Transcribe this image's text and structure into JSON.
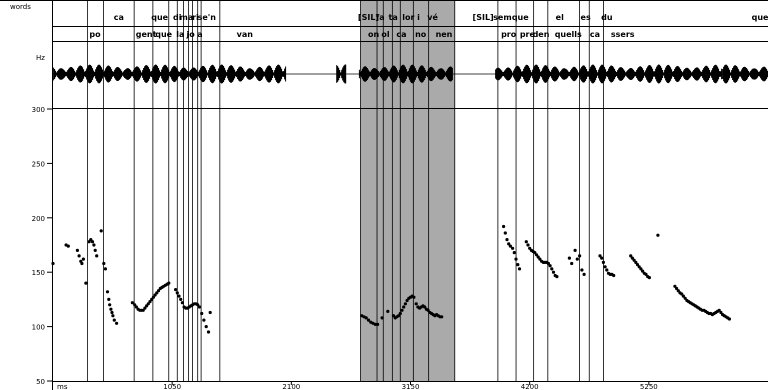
{
  "tiers": {
    "words_label": "words",
    "hz_label": "Hz",
    "row1": [
      {
        "t": 580,
        "text": "ca"
      },
      {
        "t": 940,
        "text": "que"
      },
      {
        "t": 1095,
        "text": "di"
      },
      {
        "t": 1175,
        "text": "ma"
      },
      {
        "t": 1255,
        "text": "ri"
      },
      {
        "t": 1355,
        "text": "se'n"
      },
      {
        "t": 2780,
        "text": "[SIL]"
      },
      {
        "t": 2883,
        "text": "fa"
      },
      {
        "t": 2997,
        "text": "ta"
      },
      {
        "t": 3155,
        "text": "lor i"
      },
      {
        "t": 3345,
        "text": "vé"
      },
      {
        "t": 3790,
        "text": "[SIL]"
      },
      {
        "t": 3960,
        "text": "sem"
      },
      {
        "t": 4117,
        "text": "que"
      },
      {
        "t": 4465,
        "text": "el"
      },
      {
        "t": 4693,
        "text": "es"
      },
      {
        "t": 4880,
        "text": "du"
      },
      {
        "t": 6230,
        "text": "que"
      }
    ],
    "row2": [
      {
        "t": 370,
        "text": "po"
      },
      {
        "t": 820,
        "text": "gent"
      },
      {
        "t": 975,
        "text": "que"
      },
      {
        "t": 1122,
        "text": "la"
      },
      {
        "t": 1213,
        "text": "jo"
      },
      {
        "t": 1295,
        "text": "a"
      },
      {
        "t": 1690,
        "text": "van"
      },
      {
        "t": 2825,
        "text": "on"
      },
      {
        "t": 2930,
        "text": "ol"
      },
      {
        "t": 3070,
        "text": "ca"
      },
      {
        "t": 3240,
        "text": "no"
      },
      {
        "t": 3445,
        "text": "nen"
      },
      {
        "t": 4015,
        "text": "pro"
      },
      {
        "t": 4180,
        "text": "pre"
      },
      {
        "t": 4300,
        "text": "den"
      },
      {
        "t": 4540,
        "text": "quells"
      },
      {
        "t": 4775,
        "text": "ca"
      },
      {
        "t": 5020,
        "text": "ssers"
      }
    ]
  },
  "boundaries_ms": [
    305,
    445,
    715,
    880,
    1020,
    1095,
    1150,
    1195,
    1230,
    1275,
    1305,
    1470,
    2710,
    2855,
    2910,
    2990,
    3060,
    3175,
    3310,
    3540,
    3920,
    4080,
    4235,
    4360,
    4640,
    4725,
    4850
  ],
  "selection": {
    "start_ms": 2710,
    "end_ms": 3540
  },
  "axis": {
    "unit": "ms",
    "ticks": [
      {
        "t": 1050,
        "text": "1050"
      },
      {
        "t": 2100,
        "text": "2100"
      },
      {
        "t": 3150,
        "text": "3150"
      },
      {
        "t": 4200,
        "text": "4200"
      },
      {
        "t": 5250,
        "text": "5250"
      }
    ]
  },
  "pitch_axis": {
    "range": [
      50,
      300
    ],
    "ticks": [
      {
        "v": 300,
        "text": "300"
      },
      {
        "v": 250,
        "text": "250"
      },
      {
        "v": 200,
        "text": "200"
      },
      {
        "v": 150,
        "text": "150"
      },
      {
        "v": 100,
        "text": "100"
      },
      {
        "v": 50,
        "text": "50"
      }
    ]
  },
  "view": {
    "start_ms": 0,
    "end_ms": 6300
  },
  "chart_data": {
    "type": "scatter",
    "xlabel": "ms",
    "ylabel": "Hz",
    "xlim": [
      0,
      6300
    ],
    "ylim": [
      50,
      300
    ],
    "x": [
      0,
      120,
      145,
      220,
      240,
      260,
      275,
      290,
      320,
      335,
      350,
      365,
      380,
      395,
      430,
      455,
      470,
      490,
      505,
      520,
      560,
      600,
      640,
      680,
      720,
      760,
      800,
      840,
      880,
      920,
      960,
      1000,
      1040,
      1080,
      1120,
      1160,
      1200,
      1240,
      1270,
      1300,
      1340,
      1380,
      1420,
      1460,
      1500,
      1540,
      1580,
      1620,
      1660,
      2710,
      2740,
      2770,
      2800,
      2830,
      2860,
      2890,
      2950,
      2990,
      3020,
      3040,
      3070,
      3100,
      3130,
      3160,
      3190,
      3220,
      3250,
      3280,
      3310,
      3340,
      3370,
      3400,
      3430,
      3460,
      3490,
      3520,
      3550,
      3580,
      3610,
      3640,
      3670,
      3700,
      3730,
      3760,
      3790,
      3820,
      3850,
      3880,
      3910,
      3940,
      3970,
      4000,
      4030,
      4060,
      4090,
      4120,
      4150,
      4180,
      4210,
      4240,
      4270,
      4300,
      4330,
      4360,
      4390,
      4420,
      4450,
      4480,
      4510,
      4540,
      4570,
      4600,
      4630,
      4660,
      4690,
      4720,
      4750,
      4780,
      4810,
      4840,
      4870,
      4900,
      4930,
      4960,
      4990,
      5020,
      5050,
      5080,
      5110,
      5140,
      5170,
      5200,
      5230,
      5260,
      5290,
      5320,
      5350,
      5380,
      5410,
      5440,
      5470,
      5500,
      5530,
      5560,
      5590,
      5620,
      5650,
      5680,
      5710,
      5740,
      5770,
      5800,
      5830,
      5860,
      5890,
      5920,
      5950,
      5980,
      6010,
      6040,
      6070,
      6100,
      6130,
      6160,
      6190,
      6220,
      6250,
      6280
    ],
    "y": [
      158,
      175,
      174,
      170,
      165,
      160,
      158,
      163,
      178,
      180,
      178,
      176,
      172,
      165,
      158,
      155,
      150,
      120,
      118,
      116,
      115,
      115,
      118,
      121,
      124,
      127,
      130,
      133,
      136,
      139,
      132,
      128,
      124,
      120,
      118,
      116,
      115,
      117,
      119,
      120,
      118,
      116,
      112,
      106,
      99,
      104,
      113,
      117,
      121,
      110,
      108,
      106,
      104,
      102,
      101,
      103,
      106,
      109,
      110,
      108,
      109,
      111,
      114,
      118,
      121,
      124,
      126,
      127,
      127,
      121,
      117,
      116,
      118,
      117,
      115,
      114,
      113,
      112,
      111,
      110,
      109,
      108,
      107,
      106,
      105,
      104,
      103,
      102,
      101,
      100,
      192,
      184,
      178,
      174,
      170,
      164,
      158,
      154,
      148,
      144,
      178,
      172,
      168,
      165,
      163,
      161,
      160,
      160,
      158,
      155,
      150,
      145,
      143,
      163,
      156,
      160,
      165,
      150,
      148,
      146,
      145,
      165,
      160,
      155,
      152,
      148,
      146,
      145,
      144,
      144,
      143,
      142,
      141,
      140,
      139,
      138,
      137,
      136,
      136,
      135,
      134,
      133,
      132,
      131,
      130,
      129,
      128,
      127,
      126,
      125,
      124,
      123,
      122,
      121,
      120,
      119,
      118,
      117,
      116,
      115,
      114,
      113,
      112,
      111,
      110,
      109,
      108,
      107
    ]
  },
  "points": [
    [
      0,
      158
    ],
    [
      115,
      175
    ],
    [
      135,
      174
    ],
    [
      215,
      170
    ],
    [
      230,
      165
    ],
    [
      245,
      160
    ],
    [
      255,
      158
    ],
    [
      268,
      162
    ],
    [
      290,
      140
    ],
    [
      318,
      178
    ],
    [
      333,
      180
    ],
    [
      348,
      178
    ],
    [
      360,
      175
    ],
    [
      372,
      170
    ],
    [
      385,
      165
    ],
    [
      425,
      188
    ],
    [
      448,
      158
    ],
    [
      462,
      153
    ],
    [
      480,
      132
    ],
    [
      492,
      125
    ],
    [
      500,
      120
    ],
    [
      510,
      116
    ],
    [
      520,
      113
    ],
    [
      528,
      110
    ],
    [
      540,
      106
    ],
    [
      560,
      103
    ],
    [
      700,
      122
    ],
    [
      720,
      120
    ],
    [
      735,
      118
    ],
    [
      750,
      116
    ],
    [
      765,
      115
    ],
    [
      780,
      115
    ],
    [
      795,
      115
    ],
    [
      810,
      117
    ],
    [
      825,
      119
    ],
    [
      840,
      121
    ],
    [
      855,
      123
    ],
    [
      870,
      125
    ],
    [
      885,
      127
    ],
    [
      900,
      129
    ],
    [
      915,
      131
    ],
    [
      930,
      133
    ],
    [
      945,
      135
    ],
    [
      960,
      136
    ],
    [
      975,
      137
    ],
    [
      990,
      138
    ],
    [
      1005,
      139
    ],
    [
      1020,
      140
    ],
    [
      1080,
      134
    ],
    [
      1095,
      131
    ],
    [
      1110,
      128
    ],
    [
      1125,
      125
    ],
    [
      1140,
      122
    ],
    [
      1155,
      118
    ],
    [
      1170,
      117
    ],
    [
      1185,
      117
    ],
    [
      1200,
      118
    ],
    [
      1215,
      119
    ],
    [
      1230,
      120
    ],
    [
      1245,
      121
    ],
    [
      1260,
      121
    ],
    [
      1275,
      120
    ],
    [
      1290,
      118
    ],
    [
      1310,
      112
    ],
    [
      1330,
      106
    ],
    [
      1350,
      100
    ],
    [
      1370,
      95
    ],
    [
      1385,
      113
    ],
    [
      2720,
      110
    ],
    [
      2740,
      109
    ],
    [
      2760,
      108
    ],
    [
      2780,
      106
    ],
    [
      2800,
      104
    ],
    [
      2820,
      103
    ],
    [
      2840,
      102
    ],
    [
      2860,
      102
    ],
    [
      2900,
      108
    ],
    [
      2950,
      114
    ],
    [
      3000,
      110
    ],
    [
      3015,
      108
    ],
    [
      3030,
      109
    ],
    [
      3045,
      110
    ],
    [
      3060,
      112
    ],
    [
      3075,
      115
    ],
    [
      3090,
      118
    ],
    [
      3105,
      121
    ],
    [
      3120,
      124
    ],
    [
      3135,
      126
    ],
    [
      3150,
      127
    ],
    [
      3165,
      128
    ],
    [
      3180,
      127
    ],
    [
      3200,
      121
    ],
    [
      3215,
      118
    ],
    [
      3230,
      117
    ],
    [
      3245,
      118
    ],
    [
      3260,
      119
    ],
    [
      3275,
      118
    ],
    [
      3290,
      116
    ],
    [
      3305,
      115
    ],
    [
      3320,
      113
    ],
    [
      3335,
      112
    ],
    [
      3350,
      111
    ],
    [
      3365,
      110
    ],
    [
      3380,
      111
    ],
    [
      3395,
      110
    ],
    [
      3410,
      109
    ],
    [
      3425,
      109
    ],
    [
      3970,
      192
    ],
    [
      3985,
      186
    ],
    [
      4000,
      180
    ],
    [
      4015,
      176
    ],
    [
      4030,
      174
    ],
    [
      4050,
      172
    ],
    [
      4065,
      168
    ],
    [
      4080,
      162
    ],
    [
      4095,
      157
    ],
    [
      4110,
      153
    ],
    [
      4170,
      178
    ],
    [
      4185,
      175
    ],
    [
      4200,
      172
    ],
    [
      4215,
      170
    ],
    [
      4230,
      169
    ],
    [
      4245,
      168
    ],
    [
      4260,
      166
    ],
    [
      4275,
      164
    ],
    [
      4290,
      162
    ],
    [
      4305,
      160
    ],
    [
      4320,
      159
    ],
    [
      4335,
      159
    ],
    [
      4350,
      159
    ],
    [
      4365,
      158
    ],
    [
      4380,
      156
    ],
    [
      4395,
      153
    ],
    [
      4410,
      150
    ],
    [
      4425,
      147
    ],
    [
      4440,
      146
    ],
    [
      4550,
      163
    ],
    [
      4570,
      158
    ],
    [
      4600,
      170
    ],
    [
      4620,
      162
    ],
    [
      4640,
      165
    ],
    [
      4660,
      152
    ],
    [
      4680,
      148
    ],
    [
      4820,
      165
    ],
    [
      4835,
      163
    ],
    [
      4850,
      159
    ],
    [
      4865,
      155
    ],
    [
      4880,
      152
    ],
    [
      4895,
      149
    ],
    [
      4910,
      148
    ],
    [
      4925,
      148
    ],
    [
      4940,
      147
    ],
    [
      5090,
      165
    ],
    [
      5105,
      163
    ],
    [
      5120,
      161
    ],
    [
      5135,
      159
    ],
    [
      5150,
      157
    ],
    [
      5165,
      155
    ],
    [
      5180,
      153
    ],
    [
      5195,
      151
    ],
    [
      5210,
      149
    ],
    [
      5225,
      148
    ],
    [
      5240,
      146
    ],
    [
      5255,
      145
    ],
    [
      5330,
      184
    ],
    [
      5480,
      137
    ],
    [
      5495,
      135
    ],
    [
      5510,
      133
    ],
    [
      5525,
      131
    ],
    [
      5540,
      130
    ],
    [
      5555,
      128
    ],
    [
      5570,
      126
    ],
    [
      5585,
      124
    ],
    [
      5600,
      123
    ],
    [
      5615,
      122
    ],
    [
      5630,
      121
    ],
    [
      5645,
      120
    ],
    [
      5660,
      119
    ],
    [
      5675,
      118
    ],
    [
      5690,
      117
    ],
    [
      5705,
      116
    ],
    [
      5720,
      115
    ],
    [
      5735,
      115
    ],
    [
      5750,
      114
    ],
    [
      5765,
      113
    ],
    [
      5780,
      112
    ],
    [
      5795,
      112
    ],
    [
      5810,
      111
    ],
    [
      5825,
      112
    ],
    [
      5840,
      113
    ],
    [
      5855,
      114
    ],
    [
      5870,
      115
    ],
    [
      5885,
      113
    ],
    [
      5900,
      111
    ],
    [
      5915,
      110
    ],
    [
      5930,
      109
    ],
    [
      5945,
      108
    ],
    [
      5960,
      107
    ]
  ],
  "waveform_segments_ms": [
    [
      5,
      2050
    ],
    [
      2500,
      2580
    ],
    [
      2700,
      3520
    ],
    [
      3900,
      5900
    ],
    [
      5900,
      6300
    ]
  ]
}
